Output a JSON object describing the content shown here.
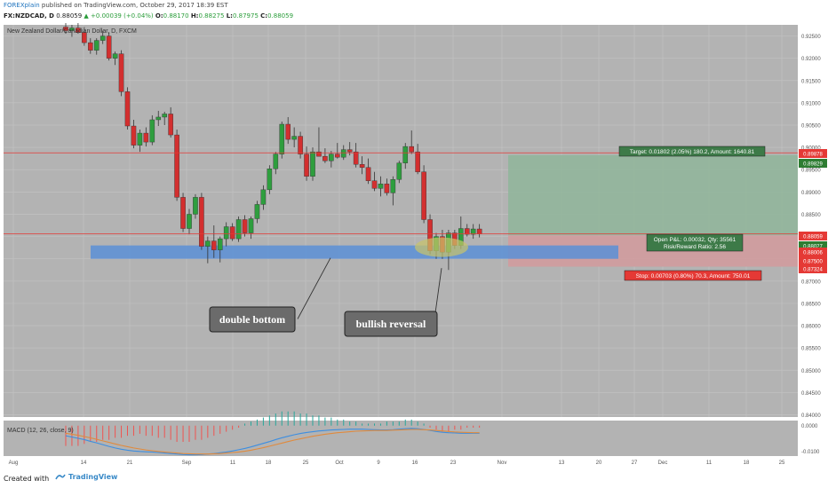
{
  "header": {
    "author": "FOREXplain",
    "published": "published on TradingView.com, October 29, 2017 18:39 EST",
    "symbol": "FX:NZDCAD, D",
    "last": "0.88059",
    "change": "+0.00039 (+0.04%)",
    "o_label": "O:",
    "o_value": "0.88170",
    "h_label": "H:",
    "h_value": "0.88275",
    "l_label": "L:",
    "l_value": "0.87975",
    "c_label": "C:",
    "c_value": "0.88059"
  },
  "pane_title": "New Zealand Dollar/Canadian Dollar, D, FXCM",
  "macd_title": "MACD (12, 26, close, 9)",
  "footer": {
    "created": "Created with",
    "brand": "TradingView"
  },
  "chart_data": {
    "type": "candlestick",
    "symbol": "FX:NZDCAD, D",
    "price_axis": {
      "labels": [
        "0.92500",
        "0.92000",
        "0.91500",
        "0.91000",
        "0.90500",
        "0.90000",
        "0.89500",
        "0.89000",
        "0.88500",
        "0.88000",
        "0.87500",
        "0.87000",
        "0.86500",
        "0.86000",
        "0.85500",
        "0.85000",
        "0.84500",
        "0.84000"
      ],
      "range": [
        0.8395,
        0.9275
      ]
    },
    "time_axis": {
      "labels": [
        "Aug",
        "14",
        "21",
        "Sep",
        "11",
        "18",
        "25",
        "Oct",
        "9",
        "16",
        "23",
        "Nov",
        "13",
        "20",
        "27",
        "Dec",
        "11",
        "18",
        "25"
      ]
    },
    "price_tags": [
      {
        "value": "0.89878",
        "color": "#e53935"
      },
      {
        "value": "0.89829",
        "color": "#2e7d32"
      },
      {
        "value": "0.88059",
        "color": "#e53935"
      },
      {
        "value": "0.88027",
        "color": "#2e7d32"
      },
      {
        "value": "0.88006",
        "color": "#e53935"
      },
      {
        "value": "0.87500",
        "color": "#e53935"
      },
      {
        "value": "0.87324",
        "color": "#e53935"
      }
    ],
    "candles": [
      {
        "o": 0.927,
        "h": 0.928,
        "l": 0.9255,
        "c": 0.9262
      },
      {
        "o": 0.9262,
        "h": 0.9275,
        "l": 0.9248,
        "c": 0.9268
      },
      {
        "o": 0.9268,
        "h": 0.928,
        "l": 0.9255,
        "c": 0.9258
      },
      {
        "o": 0.9258,
        "h": 0.927,
        "l": 0.9228,
        "c": 0.9235
      },
      {
        "o": 0.9235,
        "h": 0.9245,
        "l": 0.921,
        "c": 0.9218
      },
      {
        "o": 0.9218,
        "h": 0.9245,
        "l": 0.9208,
        "c": 0.924
      },
      {
        "o": 0.924,
        "h": 0.9262,
        "l": 0.9232,
        "c": 0.925
      },
      {
        "o": 0.925,
        "h": 0.9258,
        "l": 0.9195,
        "c": 0.92
      },
      {
        "o": 0.92,
        "h": 0.9215,
        "l": 0.9185,
        "c": 0.921
      },
      {
        "o": 0.921,
        "h": 0.9218,
        "l": 0.9115,
        "c": 0.9125
      },
      {
        "o": 0.9125,
        "h": 0.9135,
        "l": 0.904,
        "c": 0.9048
      },
      {
        "o": 0.9048,
        "h": 0.9062,
        "l": 0.8998,
        "c": 0.9005
      },
      {
        "o": 0.9005,
        "h": 0.904,
        "l": 0.899,
        "c": 0.9032
      },
      {
        "o": 0.9032,
        "h": 0.9045,
        "l": 0.9002,
        "c": 0.9012
      },
      {
        "o": 0.9012,
        "h": 0.9072,
        "l": 0.9005,
        "c": 0.9062
      },
      {
        "o": 0.9062,
        "h": 0.9082,
        "l": 0.9048,
        "c": 0.9068
      },
      {
        "o": 0.9068,
        "h": 0.908,
        "l": 0.905,
        "c": 0.9075
      },
      {
        "o": 0.9075,
        "h": 0.909,
        "l": 0.9022,
        "c": 0.9028
      },
      {
        "o": 0.9028,
        "h": 0.904,
        "l": 0.888,
        "c": 0.8888
      },
      {
        "o": 0.8888,
        "h": 0.8898,
        "l": 0.881,
        "c": 0.8818
      },
      {
        "o": 0.8818,
        "h": 0.8862,
        "l": 0.8805,
        "c": 0.885
      },
      {
        "o": 0.885,
        "h": 0.8895,
        "l": 0.884,
        "c": 0.8888
      },
      {
        "o": 0.8888,
        "h": 0.8898,
        "l": 0.877,
        "c": 0.8778
      },
      {
        "o": 0.8778,
        "h": 0.88,
        "l": 0.874,
        "c": 0.879
      },
      {
        "o": 0.879,
        "h": 0.8825,
        "l": 0.8752,
        "c": 0.877
      },
      {
        "o": 0.877,
        "h": 0.88,
        "l": 0.8742,
        "c": 0.8795
      },
      {
        "o": 0.8795,
        "h": 0.8832,
        "l": 0.8778,
        "c": 0.8822
      },
      {
        "o": 0.8822,
        "h": 0.883,
        "l": 0.879,
        "c": 0.8795
      },
      {
        "o": 0.8795,
        "h": 0.8845,
        "l": 0.8788,
        "c": 0.8838
      },
      {
        "o": 0.8838,
        "h": 0.8848,
        "l": 0.88,
        "c": 0.8808
      },
      {
        "o": 0.8808,
        "h": 0.8845,
        "l": 0.8795,
        "c": 0.884
      },
      {
        "o": 0.884,
        "h": 0.888,
        "l": 0.883,
        "c": 0.8872
      },
      {
        "o": 0.8872,
        "h": 0.8915,
        "l": 0.886,
        "c": 0.8905
      },
      {
        "o": 0.8905,
        "h": 0.896,
        "l": 0.8895,
        "c": 0.8952
      },
      {
        "o": 0.8952,
        "h": 0.899,
        "l": 0.894,
        "c": 0.8985
      },
      {
        "o": 0.8985,
        "h": 0.9058,
        "l": 0.8975,
        "c": 0.9052
      },
      {
        "o": 0.9052,
        "h": 0.9068,
        "l": 0.9008,
        "c": 0.9018
      },
      {
        "o": 0.9018,
        "h": 0.9045,
        "l": 0.9,
        "c": 0.9025
      },
      {
        "o": 0.9025,
        "h": 0.9035,
        "l": 0.8975,
        "c": 0.8985
      },
      {
        "o": 0.8985,
        "h": 0.9002,
        "l": 0.8925,
        "c": 0.8935
      },
      {
        "o": 0.8935,
        "h": 0.9,
        "l": 0.8925,
        "c": 0.899
      },
      {
        "o": 0.899,
        "h": 0.9045,
        "l": 0.898,
        "c": 0.898
      },
      {
        "o": 0.898,
        "h": 0.8998,
        "l": 0.8965,
        "c": 0.897
      },
      {
        "o": 0.897,
        "h": 0.8992,
        "l": 0.8955,
        "c": 0.8985
      },
      {
        "o": 0.8985,
        "h": 0.901,
        "l": 0.8975,
        "c": 0.8978
      },
      {
        "o": 0.8978,
        "h": 0.9005,
        "l": 0.8972,
        "c": 0.8995
      },
      {
        "o": 0.8995,
        "h": 0.9012,
        "l": 0.8982,
        "c": 0.899
      },
      {
        "o": 0.899,
        "h": 0.901,
        "l": 0.8955,
        "c": 0.8962
      },
      {
        "o": 0.8962,
        "h": 0.898,
        "l": 0.894,
        "c": 0.8955
      },
      {
        "o": 0.8955,
        "h": 0.8975,
        "l": 0.8918,
        "c": 0.8925
      },
      {
        "o": 0.8925,
        "h": 0.8945,
        "l": 0.8902,
        "c": 0.8908
      },
      {
        "o": 0.8908,
        "h": 0.8935,
        "l": 0.889,
        "c": 0.8918
      },
      {
        "o": 0.8918,
        "h": 0.893,
        "l": 0.8892,
        "c": 0.8898
      },
      {
        "o": 0.8898,
        "h": 0.8935,
        "l": 0.887,
        "c": 0.8928
      },
      {
        "o": 0.8928,
        "h": 0.897,
        "l": 0.892,
        "c": 0.8965
      },
      {
        "o": 0.8965,
        "h": 0.901,
        "l": 0.8952,
        "c": 0.9002
      },
      {
        "o": 0.9002,
        "h": 0.9038,
        "l": 0.8985,
        "c": 0.899
      },
      {
        "o": 0.899,
        "h": 0.9008,
        "l": 0.894,
        "c": 0.8945
      },
      {
        "o": 0.8945,
        "h": 0.896,
        "l": 0.883,
        "c": 0.8838
      },
      {
        "o": 0.8838,
        "h": 0.885,
        "l": 0.876,
        "c": 0.8768
      },
      {
        "o": 0.8768,
        "h": 0.8808,
        "l": 0.875,
        "c": 0.88
      },
      {
        "o": 0.88,
        "h": 0.8815,
        "l": 0.875,
        "c": 0.8765
      },
      {
        "o": 0.8765,
        "h": 0.8815,
        "l": 0.8725,
        "c": 0.8808
      },
      {
        "o": 0.8808,
        "h": 0.8815,
        "l": 0.8772,
        "c": 0.878
      },
      {
        "o": 0.878,
        "h": 0.8845,
        "l": 0.8772,
        "c": 0.8818
      },
      {
        "o": 0.8818,
        "h": 0.8828,
        "l": 0.88,
        "c": 0.8805
      },
      {
        "o": 0.8805,
        "h": 0.8828,
        "l": 0.8795,
        "c": 0.8817
      },
      {
        "o": 0.8817,
        "h": 0.8828,
        "l": 0.8798,
        "c": 0.8806
      }
    ],
    "horizontal_lines": [
      0.89878,
      0.88059
    ],
    "support_zone": [
      0.875,
      0.878
    ],
    "position": {
      "entry": 0.88027,
      "target": 0.89829,
      "stop": 0.87324,
      "target_label": "Target: 0.01802 (2.05%) 180.2, Amount: 1640.81",
      "open_label_1": "Open P&L: 0.00032, Qty: 35561",
      "open_label_2": "Risk/Reward Ratio: 2.56",
      "stop_label": "Stop: 0.00703 (0.80%) 70.3, Amount: 750.01"
    },
    "annotations": [
      "double bottom",
      "bullish reversal"
    ],
    "macd": {
      "axis_labels": [
        "0.0000",
        "-0.0100"
      ],
      "histogram": [
        -0.001,
        -0.001,
        -0.001,
        -0.0009,
        -0.0008,
        -0.0008,
        -0.0007,
        -0.0007,
        -0.0006,
        -0.0006,
        -0.0005,
        -0.0005,
        -0.0004,
        -0.0005,
        -0.0005,
        -0.0006,
        -0.0006,
        -0.0007,
        -0.0008,
        -0.0008,
        -0.0008,
        -0.0007,
        -0.0007,
        -0.0006,
        -0.0005,
        -0.0004,
        -0.0003,
        -0.0002,
        -0.0001,
        0.0001,
        0.0002,
        0.0003,
        0.0004,
        0.0005,
        0.0006,
        0.0007,
        0.0007,
        0.0007,
        0.0006,
        0.0006,
        0.0005,
        0.0005,
        0.0004,
        0.0004,
        0.0003,
        0.0003,
        0.0002,
        0.0002,
        0.0001,
        0.0001,
        0.0001,
        0.0001,
        0.0002,
        0.0002,
        0.0002,
        0.0003,
        0.0003,
        0.0002,
        0.0001,
        -0.0001,
        -0.0002,
        -0.0003,
        -0.0003,
        -0.0002,
        -0.0002,
        -0.0001,
        -0.0001,
        -0.0001
      ],
      "macd_line": [
        -0.004,
        -0.0045,
        -0.005,
        -0.0055,
        -0.0062,
        -0.0068,
        -0.0075,
        -0.0082,
        -0.0088,
        -0.0093,
        -0.0097,
        -0.01,
        -0.0102,
        -0.0103,
        -0.0104,
        -0.0106,
        -0.0108,
        -0.011,
        -0.0112,
        -0.0114,
        -0.0115,
        -0.0115,
        -0.0114,
        -0.0112,
        -0.011,
        -0.0107,
        -0.0104,
        -0.01,
        -0.0095,
        -0.009,
        -0.0084,
        -0.0077,
        -0.007,
        -0.0063,
        -0.0055,
        -0.0048,
        -0.0042,
        -0.0036,
        -0.0031,
        -0.0027,
        -0.0024,
        -0.0021,
        -0.0019,
        -0.0017,
        -0.0016,
        -0.0015,
        -0.0014,
        -0.0014,
        -0.0014,
        -0.0015,
        -0.0016,
        -0.0017,
        -0.0017,
        -0.0016,
        -0.0014,
        -0.0012,
        -0.0011,
        -0.0012,
        -0.0015,
        -0.0019,
        -0.0023,
        -0.0026,
        -0.0028,
        -0.0029,
        -0.003,
        -0.003,
        -0.003,
        -0.003
      ],
      "signal_line": [
        -0.003,
        -0.0034,
        -0.0038,
        -0.0043,
        -0.0048,
        -0.0054,
        -0.006,
        -0.0066,
        -0.0072,
        -0.0078,
        -0.0083,
        -0.0088,
        -0.0092,
        -0.0096,
        -0.0099,
        -0.0102,
        -0.0104,
        -0.0106,
        -0.0108,
        -0.011,
        -0.0111,
        -0.0112,
        -0.0112,
        -0.0112,
        -0.0111,
        -0.011,
        -0.0108,
        -0.0106,
        -0.0104,
        -0.0101,
        -0.0097,
        -0.0092,
        -0.0087,
        -0.0081,
        -0.0075,
        -0.0069,
        -0.0063,
        -0.0057,
        -0.0052,
        -0.0047,
        -0.0042,
        -0.0038,
        -0.0034,
        -0.0031,
        -0.0028,
        -0.0026,
        -0.0024,
        -0.0022,
        -0.0021,
        -0.002,
        -0.0019,
        -0.0019,
        -0.0019,
        -0.0018,
        -0.0017,
        -0.0016,
        -0.0015,
        -0.0015,
        -0.0016,
        -0.0017,
        -0.0019,
        -0.0021,
        -0.0023,
        -0.0025,
        -0.0026,
        -0.0027,
        -0.0028,
        -0.0028
      ]
    },
    "colors": {
      "up": "#2e9e3e",
      "down": "#d32f2f",
      "background": "#b3b3b3",
      "grid": "#c2c2c2",
      "support": "#5a8fd6",
      "target_zone": "#8fb59a",
      "stop_zone": "#d29a9c",
      "macd": "#3d8ee0",
      "signal": "#e08a3d"
    }
  }
}
